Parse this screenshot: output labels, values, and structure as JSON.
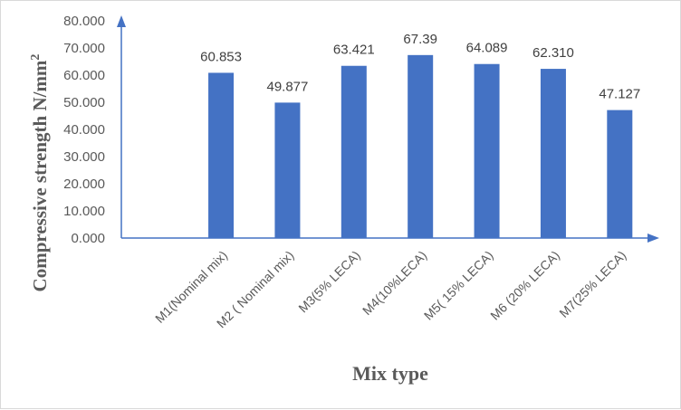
{
  "chart_data": {
    "type": "bar",
    "categories": [
      "M1(Nominal mix)",
      "M2 ( Nominal mix)",
      "M3(5% LECA)",
      "M4(10%LECA)",
      "M5( 15% LECA)",
      "M6 (20% LECA)",
      "M7(25% LECA)"
    ],
    "values": [
      60.853,
      49.877,
      63.421,
      67.39,
      64.089,
      62.31,
      47.127
    ],
    "data_labels": [
      "60.853",
      "49.877",
      "63.421",
      "67.39",
      "64.089",
      "62.310",
      "47.127"
    ],
    "yticks": [
      "0.000",
      "10.000",
      "20.000",
      "30.000",
      "40.000",
      "50.000",
      "60.000",
      "70.000",
      "80.000"
    ],
    "ylim": [
      0,
      80
    ],
    "xlabel": "Mix type",
    "ylabel": "Compressive strength N/mm",
    "ylabel_superscript": "2",
    "bar_color": "#4472C4",
    "axis_color": "#4472C4",
    "grid": false,
    "legend": "none"
  }
}
